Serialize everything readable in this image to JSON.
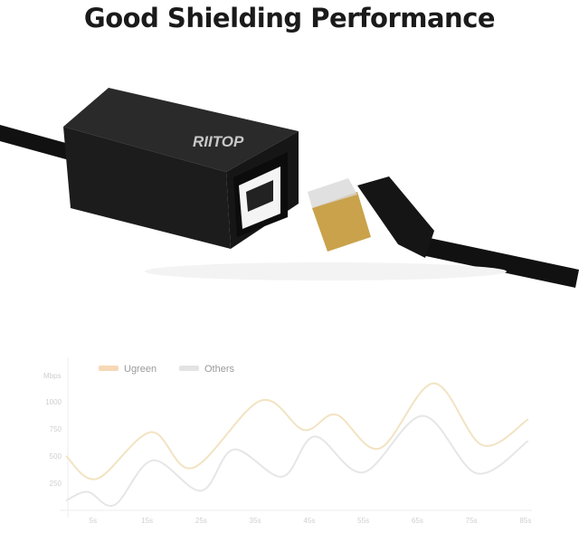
{
  "title": "Good Shielding Performance",
  "watermark": "RIITOP",
  "chart_data": {
    "type": "line",
    "title": "",
    "xlabel": "",
    "ylabel": "Mbps",
    "x_ticks": [
      "5s",
      "15s",
      "25s",
      "35s",
      "45s",
      "55s",
      "65s",
      "75s",
      "85s"
    ],
    "y_ticks": [
      250,
      500,
      750,
      1000
    ],
    "xlim": [
      0,
      86
    ],
    "ylim": [
      0,
      1250
    ],
    "grid": false,
    "legend": "top-left",
    "series": [
      {
        "name": "Ugreen",
        "color": "#f2e3c2",
        "swatch": "#f7d8b6",
        "x": [
          0,
          5.7,
          15.7,
          23.4,
          36,
          44,
          50,
          58,
          68,
          77,
          85.5
        ],
        "y": [
          500,
          290,
          720,
          390,
          1010,
          740,
          880,
          570,
          1170,
          600,
          840
        ]
      },
      {
        "name": "Others",
        "color": "#e6e6e6",
        "swatch": "#e3e3e3",
        "x": [
          0,
          4,
          9,
          16,
          25,
          31,
          40,
          46,
          55,
          66,
          76,
          85.5
        ],
        "y": [
          90,
          170,
          50,
          460,
          180,
          560,
          310,
          680,
          350,
          870,
          340,
          640
        ]
      }
    ]
  }
}
